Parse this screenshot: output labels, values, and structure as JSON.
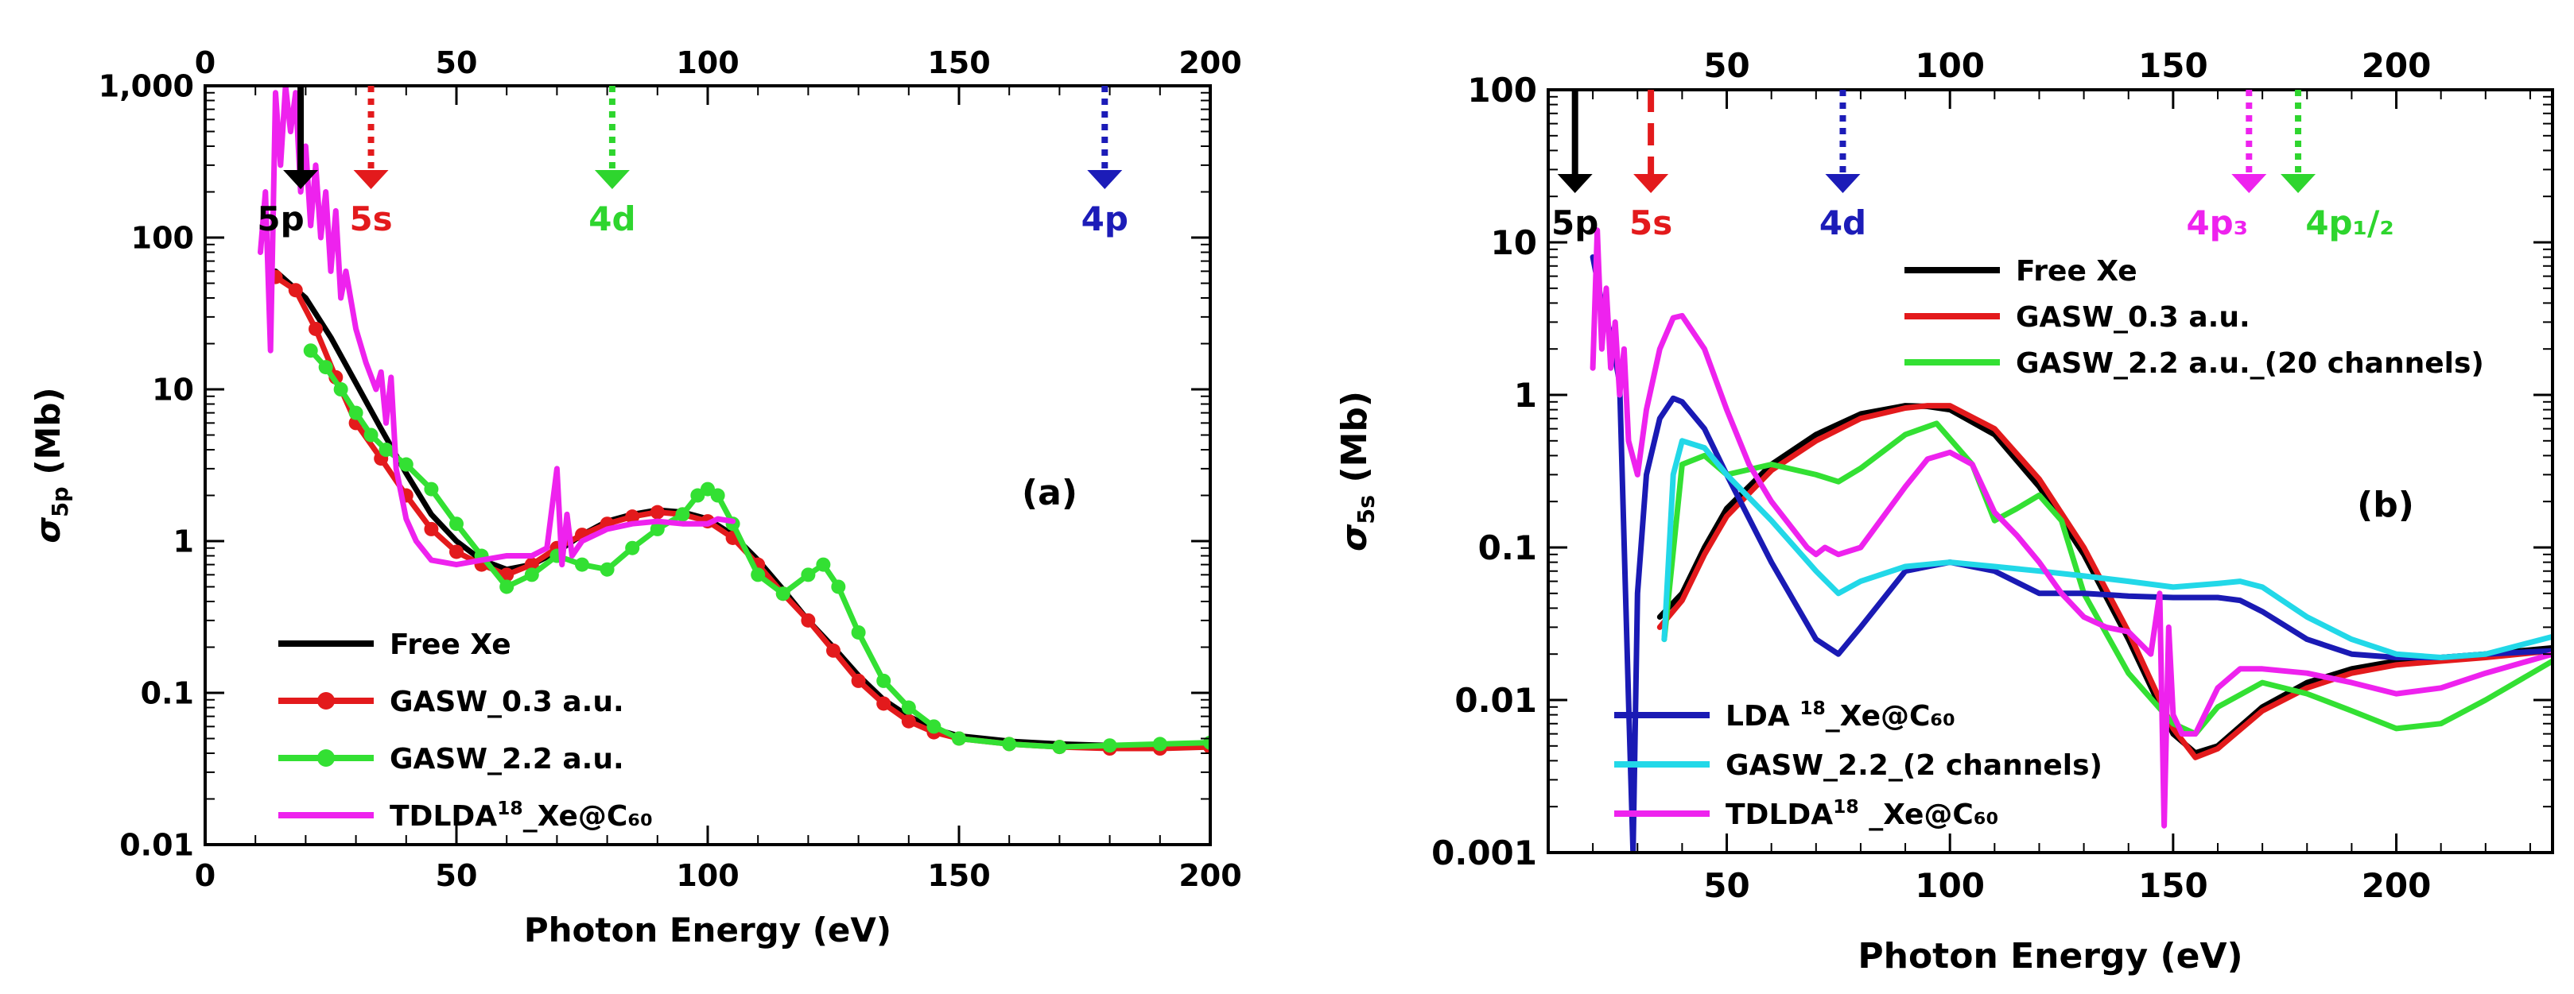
{
  "chart_data": [
    {
      "id": "a",
      "type": "line",
      "panel_label": "(a)",
      "xlabel": "Photon Energy (eV)",
      "ylabel": "σ5p (Mb)",
      "ylabel_main": "σ",
      "ylabel_sub": "5p",
      "ylabel_tail": " (Mb)",
      "xscale": "linear",
      "yscale": "log",
      "xlim": [
        0,
        200
      ],
      "ylim": [
        0.01,
        1000
      ],
      "xticks": [
        0,
        50,
        100,
        150,
        200
      ],
      "xtick_labels": [
        "0",
        "50",
        "100",
        "150",
        "200"
      ],
      "top_xticks": [
        0,
        50,
        100,
        150,
        200
      ],
      "top_xtick_labels": [
        "0",
        "50",
        "100",
        "150",
        "200"
      ],
      "yticks": [
        0.01,
        0.1,
        1,
        10,
        100,
        1000
      ],
      "ytick_labels": [
        "0.01",
        "0.1",
        "1",
        "10",
        "100",
        "1,000"
      ],
      "legend_position": "bottom-left",
      "edges": [
        {
          "label": "5p",
          "x": 19,
          "color": "#000000",
          "style": "solid",
          "label_dx": -25
        },
        {
          "label": "5s",
          "x": 33,
          "color": "#e31a1c",
          "style": "dotted",
          "label_dx": 0
        },
        {
          "label": "4d",
          "x": 81,
          "color": "#2ed52e",
          "style": "dotted",
          "label_dx": 0
        },
        {
          "label": "4p",
          "x": 179,
          "color": "#1c1cb8",
          "style": "dotted",
          "label_dx": 0
        }
      ],
      "series": [
        {
          "name": "Free Xe",
          "label": "Free Xe",
          "color": "#000000",
          "marker": "none",
          "x": [
            14,
            20,
            25,
            30,
            35,
            40,
            45,
            50,
            55,
            60,
            65,
            70,
            75,
            80,
            85,
            90,
            95,
            100,
            105,
            110,
            115,
            120,
            125,
            130,
            135,
            140,
            145,
            150,
            155,
            160,
            170,
            180,
            190,
            200
          ],
          "y": [
            60,
            40,
            22,
            11,
            5.5,
            2.8,
            1.5,
            1.0,
            0.75,
            0.65,
            0.7,
            0.85,
            1.1,
            1.35,
            1.5,
            1.6,
            1.55,
            1.4,
            1.1,
            0.75,
            0.48,
            0.3,
            0.2,
            0.13,
            0.09,
            0.07,
            0.058,
            0.052,
            0.05,
            0.048,
            0.046,
            0.045,
            0.045,
            0.045
          ]
        },
        {
          "name": "GASW_0.3 a.u.",
          "label": "GASW_0.3 a.u.",
          "color": "#e31a1c",
          "marker": "circle",
          "x": [
            14,
            18,
            22,
            26,
            30,
            35,
            40,
            45,
            50,
            55,
            60,
            65,
            70,
            75,
            80,
            85,
            90,
            95,
            100,
            105,
            110,
            115,
            120,
            125,
            130,
            135,
            140,
            145,
            150,
            160,
            170,
            180,
            190,
            200
          ],
          "y": [
            55,
            45,
            25,
            12,
            6,
            3.5,
            2.0,
            1.2,
            0.85,
            0.7,
            0.6,
            0.7,
            0.9,
            1.1,
            1.3,
            1.45,
            1.55,
            1.5,
            1.35,
            1.05,
            0.7,
            0.45,
            0.3,
            0.19,
            0.12,
            0.085,
            0.065,
            0.055,
            0.05,
            0.046,
            0.044,
            0.043,
            0.043,
            0.044
          ]
        },
        {
          "name": "GASW_2.2 a.u.",
          "label": "GASW_2.2 a.u.",
          "color": "#33e033",
          "marker": "circle",
          "x": [
            21,
            24,
            27,
            30,
            33,
            36,
            40,
            45,
            50,
            55,
            60,
            65,
            70,
            75,
            80,
            85,
            90,
            95,
            98,
            100,
            102,
            105,
            110,
            115,
            120,
            123,
            126,
            130,
            135,
            140,
            145,
            150,
            160,
            170,
            180,
            190,
            200
          ],
          "y": [
            18,
            14,
            10,
            7,
            5,
            4,
            3.2,
            2.2,
            1.3,
            0.8,
            0.5,
            0.6,
            0.8,
            0.7,
            0.65,
            0.9,
            1.2,
            1.5,
            2.0,
            2.2,
            2.0,
            1.3,
            0.6,
            0.45,
            0.6,
            0.7,
            0.5,
            0.25,
            0.12,
            0.08,
            0.06,
            0.05,
            0.046,
            0.044,
            0.045,
            0.046,
            0.047
          ]
        },
        {
          "name": "TDLDA18_Xe@C60",
          "label_main": "TDLDA",
          "label_sup": "18",
          "label_tail": "_Xe@C₆₀",
          "color": "#ee22ee",
          "marker": "none",
          "x": [
            11,
            12,
            13,
            14,
            15,
            16,
            17,
            18,
            19,
            20,
            21,
            22,
            23,
            24,
            25,
            26,
            27,
            28,
            30,
            32,
            34,
            35,
            36,
            37,
            38,
            40,
            42,
            45,
            50,
            55,
            60,
            65,
            68,
            70,
            71,
            72,
            73,
            75,
            80,
            85,
            90,
            95,
            100,
            102,
            105
          ],
          "y": [
            80,
            200,
            18,
            900,
            300,
            1000,
            500,
            900,
            200,
            400,
            120,
            300,
            100,
            200,
            60,
            150,
            40,
            60,
            25,
            15,
            10,
            13,
            6,
            12,
            3,
            1.4,
            1.0,
            0.75,
            0.7,
            0.75,
            0.8,
            0.8,
            0.9,
            3,
            0.7,
            1.5,
            0.8,
            1.0,
            1.2,
            1.3,
            1.35,
            1.3,
            1.3,
            1.4,
            1.35
          ]
        }
      ]
    },
    {
      "id": "b",
      "type": "line",
      "panel_label": "(b)",
      "xlabel": "Photon Energy (eV)",
      "ylabel": "σ5s (Mb)",
      "ylabel_main": "σ",
      "ylabel_sub": "5s",
      "ylabel_tail": " (Mb)",
      "xscale": "linear",
      "yscale": "log",
      "xlim": [
        10,
        235
      ],
      "ylim": [
        0.001,
        100
      ],
      "xticks": [
        50,
        100,
        150,
        200
      ],
      "xtick_labels": [
        "50",
        "100",
        "150",
        "200"
      ],
      "top_xticks": [
        50,
        100,
        150,
        200
      ],
      "top_xtick_labels": [
        "50",
        "100",
        "150",
        "200"
      ],
      "yticks": [
        0.001,
        0.01,
        0.1,
        1,
        10,
        100
      ],
      "ytick_labels": [
        "0.001",
        "0.01",
        "0.1",
        "1",
        "10",
        "100"
      ],
      "legend_position": "top-right and bottom-left",
      "edges": [
        {
          "label": "5p",
          "x": 16,
          "color": "#000000",
          "style": "solid",
          "label_dx": 0
        },
        {
          "label": "5s",
          "x": 33,
          "color": "#e31a1c",
          "style": "dashed",
          "label_dx": 0
        },
        {
          "label": "4d",
          "x": 76,
          "color": "#1c1cb8",
          "style": "dotted",
          "label_dx": 0
        },
        {
          "label": "4p₃",
          "x": 167,
          "color": "#ee22ee",
          "style": "dotted",
          "label_dx": -40
        },
        {
          "label": "4p₁/₂",
          "x": 178,
          "color": "#2ed52e",
          "style": "dotted",
          "label_dx": 65
        }
      ],
      "series": [
        {
          "name": "Free Xe",
          "label": "Free Xe",
          "color": "#000000",
          "group": "top",
          "x": [
            35,
            40,
            45,
            50,
            60,
            70,
            80,
            90,
            95,
            100,
            110,
            120,
            130,
            140,
            150,
            155,
            160,
            170,
            180,
            190,
            200,
            210,
            220,
            235
          ],
          "y": [
            0.035,
            0.05,
            0.1,
            0.18,
            0.35,
            0.55,
            0.75,
            0.85,
            0.84,
            0.8,
            0.55,
            0.25,
            0.09,
            0.025,
            0.006,
            0.0045,
            0.005,
            0.009,
            0.013,
            0.016,
            0.018,
            0.019,
            0.02,
            0.022
          ]
        },
        {
          "name": "GASW_0.3 a.u.",
          "label": "GASW_0.3 a.u.",
          "color": "#e31a1c",
          "group": "top",
          "x": [
            35,
            40,
            45,
            50,
            60,
            70,
            80,
            90,
            95,
            100,
            110,
            120,
            130,
            140,
            150,
            155,
            160,
            170,
            180,
            190,
            200,
            210,
            220,
            235
          ],
          "y": [
            0.03,
            0.045,
            0.09,
            0.16,
            0.32,
            0.5,
            0.7,
            0.82,
            0.85,
            0.85,
            0.6,
            0.28,
            0.1,
            0.028,
            0.0065,
            0.0042,
            0.0048,
            0.0085,
            0.012,
            0.015,
            0.017,
            0.018,
            0.019,
            0.021
          ]
        },
        {
          "name": "GASW_2.2 a.u._(20 channels)",
          "label": "GASW_2.2 a.u._(20 channels)",
          "color": "#33e033",
          "group": "top",
          "x": [
            36,
            40,
            45,
            50,
            60,
            70,
            75,
            80,
            90,
            97,
            105,
            110,
            115,
            120,
            125,
            130,
            140,
            150,
            155,
            160,
            170,
            180,
            190,
            200,
            210,
            220,
            235
          ],
          "y": [
            0.025,
            0.35,
            0.4,
            0.3,
            0.35,
            0.3,
            0.27,
            0.33,
            0.55,
            0.65,
            0.35,
            0.15,
            0.18,
            0.22,
            0.15,
            0.05,
            0.015,
            0.007,
            0.006,
            0.009,
            0.013,
            0.011,
            0.0085,
            0.0065,
            0.007,
            0.01,
            0.018
          ]
        },
        {
          "name": "LDA 18_Xe@C60",
          "label_main": "LDA ",
          "label_sup": "18",
          "label_tail": "_Xe@C₆₀",
          "color": "#1a1ab4",
          "group": "bottom",
          "x": [
            20,
            22,
            24,
            26,
            28,
            29,
            30,
            32,
            35,
            38,
            40,
            45,
            50,
            60,
            70,
            75,
            80,
            90,
            100,
            110,
            120,
            130,
            140,
            150,
            160,
            165,
            170,
            180,
            190,
            200,
            210,
            220,
            235
          ],
          "y": [
            8,
            4,
            2.5,
            1.2,
            0.01,
            0.001,
            0.05,
            0.3,
            0.7,
            0.95,
            0.9,
            0.6,
            0.3,
            0.08,
            0.025,
            0.02,
            0.03,
            0.07,
            0.08,
            0.07,
            0.05,
            0.05,
            0.048,
            0.047,
            0.047,
            0.045,
            0.038,
            0.025,
            0.02,
            0.019,
            0.019,
            0.02,
            0.021
          ]
        },
        {
          "name": "GASW_2.2_(2 channels)",
          "label": "GASW_2.2_(2 channels)",
          "color": "#22d8e8",
          "group": "bottom",
          "x": [
            36,
            38,
            40,
            45,
            50,
            60,
            70,
            75,
            80,
            90,
            100,
            110,
            120,
            130,
            140,
            150,
            160,
            165,
            170,
            180,
            190,
            200,
            210,
            220,
            235
          ],
          "y": [
            0.025,
            0.3,
            0.5,
            0.45,
            0.3,
            0.15,
            0.07,
            0.05,
            0.06,
            0.075,
            0.08,
            0.075,
            0.07,
            0.065,
            0.06,
            0.055,
            0.058,
            0.06,
            0.055,
            0.035,
            0.025,
            0.02,
            0.019,
            0.02,
            0.026
          ]
        },
        {
          "name": "TDLDA18_Xe@C60",
          "label_main": "TDLDA",
          "label_sup": "18",
          "label_tail": " _Xe@C₆₀",
          "color": "#ee22ee",
          "group": "bottom",
          "x": [
            20,
            21,
            22,
            23,
            24,
            25,
            26,
            27,
            28,
            30,
            32,
            35,
            38,
            40,
            45,
            50,
            55,
            60,
            65,
            68,
            70,
            72,
            75,
            80,
            90,
            95,
            100,
            105,
            110,
            115,
            120,
            125,
            130,
            135,
            140,
            145,
            147,
            148,
            149,
            150,
            152,
            155,
            160,
            165,
            170,
            180,
            190,
            200,
            210,
            220,
            235
          ],
          "y": [
            1.5,
            12,
            2,
            5,
            1.5,
            3,
            1,
            2,
            0.5,
            0.3,
            0.8,
            2.0,
            3.2,
            3.3,
            2.0,
            0.8,
            0.35,
            0.2,
            0.13,
            0.1,
            0.09,
            0.1,
            0.09,
            0.1,
            0.25,
            0.38,
            0.42,
            0.35,
            0.17,
            0.12,
            0.08,
            0.05,
            0.035,
            0.03,
            0.028,
            0.02,
            0.05,
            0.0015,
            0.03,
            0.008,
            0.006,
            0.006,
            0.012,
            0.016,
            0.016,
            0.015,
            0.013,
            0.011,
            0.012,
            0.015,
            0.02
          ]
        }
      ]
    }
  ]
}
